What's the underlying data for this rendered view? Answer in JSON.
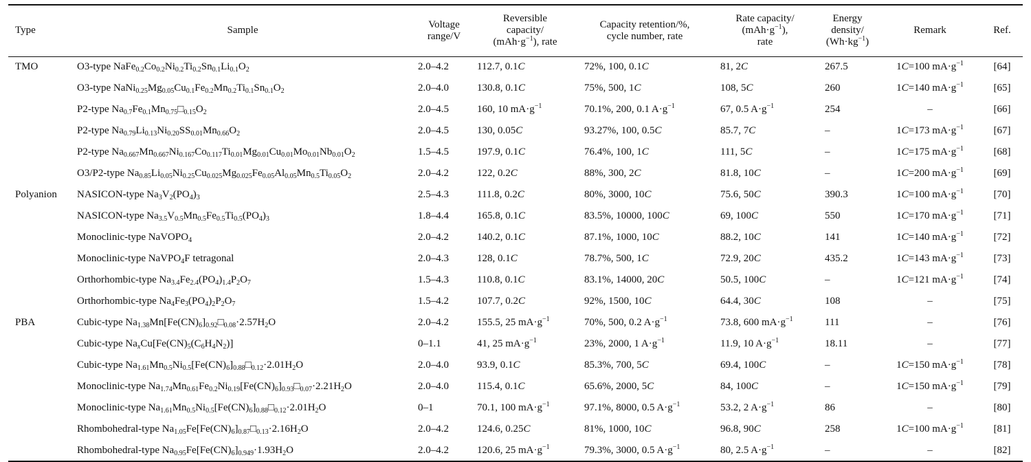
{
  "headers": {
    "type": "Type",
    "sample": "Sample",
    "voltage_1": "Voltage",
    "voltage_2": "range/V",
    "rev_1": "Reversible",
    "rev_2": "capacity/",
    "rev_3_pre": "(mAh·g",
    "rev_3_sup": "−1",
    "rev_3_post": "), rate",
    "ret_1": "Capacity retention/%,",
    "ret_2": "cycle number, rate",
    "rate_1": "Rate capacity/",
    "rate_2_pre": "(mAh·g",
    "rate_2_sup": "−1",
    "rate_2_post": "),",
    "rate_3": "rate",
    "energy_1": "Energy",
    "energy_2": "density/",
    "energy_3_pre": "(Wh·kg",
    "energy_3_sup": "−1",
    "energy_3_post": ")",
    "remark": "Remark",
    "ref": "Ref."
  },
  "rows": [
    {
      "type": "TMO",
      "sample": "O3-type NaFe<sub>0.2</sub>Co<sub>0.2</sub>Ni<sub>0.2</sub>Ti<sub>0.2</sub>Sn<sub>0.1</sub>Li<sub>0.1</sub>O<sub>2</sub>",
      "voltage": "2.0–4.2",
      "capacity": "112.7, 0.1<i>C</i>",
      "retention": "72%, 100, 0.1<i>C</i>",
      "rate": "81, 2<i>C</i>",
      "energy": "267.5",
      "remark": "1<i>C</i>=100 mA·g<sup>−1</sup>",
      "ref": "[64]"
    },
    {
      "type": "",
      "sample": "O3-type NaNi<sub>0.25</sub>Mg<sub>0.05</sub>Cu<sub>0.1</sub>Fe<sub>0.2</sub>Mn<sub>0.2</sub>Ti<sub>0.1</sub>Sn<sub>0.1</sub>O<sub>2</sub>",
      "voltage": "2.0–4.0",
      "capacity": "130.8, 0.1<i>C</i>",
      "retention": "75%, 500, 1<i>C</i>",
      "rate": "108, 5<i>C</i>",
      "energy": "260",
      "remark": "1<i>C</i>=140 mA·g<sup>−1</sup>",
      "ref": "[65]"
    },
    {
      "type": "",
      "sample": "P2-type Na<sub>0.7</sub>Fe<sub>0.1</sub>Mn<sub>0.75</sub>□<sub>0.15</sub>O<sub>2</sub>",
      "voltage": "2.0–4.5",
      "capacity": "160, 10 mA·g<sup>−1</sup>",
      "retention": "70.1%, 200, 0.1 A·g<sup>−1</sup>",
      "rate": "67, 0.5 A·g<sup>−1</sup>",
      "energy": "254",
      "remark": "–",
      "ref": "[66]"
    },
    {
      "type": "",
      "sample": "P2-type Na<sub>0.79</sub>Li<sub>0.13</sub>Ni<sub>0.20</sub>SS<sub>0.01</sub>Mn<sub>0.66</sub>O<sub>2</sub>",
      "voltage": "2.0–4.5",
      "capacity": "130, 0.05<i>C</i>",
      "retention": "93.27%, 100, 0.5<i>C</i>",
      "rate": "85.7, 7<i>C</i>",
      "energy": "–",
      "remark": "1<i>C</i>=173 mA·g<sup>−1</sup>",
      "ref": "[67]"
    },
    {
      "type": "",
      "sample": "P2-type Na<sub>0.667</sub>Mn<sub>0.667</sub>Ni<sub>0.167</sub>Co<sub>0.117</sub>Ti<sub>0.01</sub>Mg<sub>0.01</sub>Cu<sub>0.01</sub>Mo<sub>0.01</sub>Nb<sub>0.01</sub>O<sub>2</sub>",
      "voltage": "1.5–4.5",
      "capacity": "197.9, 0.1<i>C</i>",
      "retention": "76.4%, 100, 1<i>C</i>",
      "rate": "111, 5<i>C</i>",
      "energy": "–",
      "remark": "1<i>C</i>=175 mA·g<sup>−1</sup>",
      "ref": "[68]"
    },
    {
      "type": "",
      "sample": "O3/P2-type Na<sub>0.85</sub>Li<sub>0.05</sub>Ni<sub>0.25</sub>Cu<sub>0.025</sub>Mg<sub>0.025</sub>Fe<sub>0.05</sub>Al<sub>0.05</sub>Mn<sub>0.5</sub>Ti<sub>0.05</sub>O<sub>2</sub>",
      "voltage": "2.0–4.2",
      "capacity": "122, 0.2<i>C</i>",
      "retention": "88%, 300, 2<i>C</i>",
      "rate": "81.8, 10<i>C</i>",
      "energy": "–",
      "remark": "1<i>C</i>=200 mA·g<sup>−1</sup>",
      "ref": "[69]"
    },
    {
      "type": "Polyanion",
      "sample": "NASICON-type Na<sub>3</sub>V<sub>2</sub>(PO<sub>4</sub>)<sub>3</sub>",
      "voltage": "2.5–4.3",
      "capacity": "111.8, 0.2<i>C</i>",
      "retention": "80%, 3000, 10<i>C</i>",
      "rate": "75.6, 50<i>C</i>",
      "energy": "390.3",
      "remark": "1<i>C</i>=100 mA·g<sup>−1</sup>",
      "ref": "[70]"
    },
    {
      "type": "",
      "sample": "NASICON-type Na<sub>3.5</sub>V<sub>0.5</sub>Mn<sub>0.5</sub>Fe<sub>0.5</sub>Ti<sub>0.5</sub>(PO<sub>4</sub>)<sub>3</sub>",
      "voltage": "1.8–4.4",
      "capacity": "165.8, 0.1<i>C</i>",
      "retention": "83.5%, 10000, 100<i>C</i>",
      "rate": "69, 100<i>C</i>",
      "energy": "550",
      "remark": "1<i>C</i>=170 mA·g<sup>−1</sup>",
      "ref": "[71]"
    },
    {
      "type": "",
      "sample": "Monoclinic-type NaVOPO<sub>4</sub>",
      "voltage": "2.0–4.2",
      "capacity": "140.2, 0.1<i>C</i>",
      "retention": "87.1%, 1000, 10<i>C</i>",
      "rate": "88.2, 10<i>C</i>",
      "energy": "141",
      "remark": "1<i>C</i>=140 mA·g<sup>−1</sup>",
      "ref": "[72]"
    },
    {
      "type": "",
      "sample": "Monoclinic-type NaVPO<sub>4</sub>F tetragonal",
      "voltage": "2.0–4.3",
      "capacity": "128, 0.1<i>C</i>",
      "retention": "78.7%, 500, 1<i>C</i>",
      "rate": "72.9, 20<i>C</i>",
      "energy": "435.2",
      "remark": "1<i>C</i>=143 mA·g<sup>−1</sup>",
      "ref": "[73]"
    },
    {
      "type": "",
      "sample": "Orthorhombic-type Na<sub>3.4</sub>Fe<sub>2.4</sub>(PO<sub>4</sub>)<sub>1.4</sub>P<sub>2</sub>O<sub>7</sub>",
      "voltage": "1.5–4.3",
      "capacity": "110.8, 0.1<i>C</i>",
      "retention": "83.1%, 14000, 20<i>C</i>",
      "rate": "50.5, 100<i>C</i>",
      "energy": "–",
      "remark": "1<i>C</i>=121 mA·g<sup>−1</sup>",
      "ref": "[74]"
    },
    {
      "type": "",
      "sample": "Orthorhombic-type Na<sub>4</sub>Fe<sub>3</sub>(PO<sub>4</sub>)<sub>2</sub>P<sub>2</sub>O<sub>7</sub>",
      "voltage": "1.5–4.2",
      "capacity": "107.7, 0.2<i>C</i>",
      "retention": "92%, 1500, 10<i>C</i>",
      "rate": "64.4, 30<i>C</i>",
      "energy": "108",
      "remark": "–",
      "ref": "[75]"
    },
    {
      "type": "PBA",
      "sample": "Cubic-type Na<sub>1.38</sub>Mn[Fe(CN)<sub>6</sub>]<sub>0.92</sub>□<sub>0.08</sub>·2.57H<sub>2</sub>O",
      "voltage": "2.0–4.2",
      "capacity": "155.5, 25 mA·g<sup>−1</sup>",
      "retention": "70%, 500, 0.2 A·g<sup>−1</sup>",
      "rate": "73.8, 600 mA·g<sup>−1</sup>",
      "energy": "111",
      "remark": "–",
      "ref": "[76]"
    },
    {
      "type": "",
      "sample": "Cubic-type Na<sub><i>x</i></sub>Cu[Fe(CN)<sub>5</sub>(C<sub>6</sub>H<sub>4</sub>N<sub>2</sub>)]",
      "voltage": "0–1.1",
      "capacity": "41, 25 mA·g<sup>−1</sup>",
      "retention": "23%, 2000, 1 A·g<sup>−1</sup>",
      "rate": "11.9, 10 A·g<sup>−1</sup>",
      "energy": "18.11",
      "remark": "–",
      "ref": "[77]"
    },
    {
      "type": "",
      "sample": "Cubic-type Na<sub>1.61</sub>Mn<sub>0.5</sub>Ni<sub>0.5</sub>[Fe(CN)<sub>6</sub>]<sub>0.88</sub>□<sub>0.12</sub>·2.01H<sub>2</sub>O",
      "voltage": "2.0–4.0",
      "capacity": "93.9, 0.1<i>C</i>",
      "retention": "85.3%, 700, 5<i>C</i>",
      "rate": "69.4, 100<i>C</i>",
      "energy": "–",
      "remark": "1<i>C</i>=150 mA·g<sup>−1</sup>",
      "ref": "[78]"
    },
    {
      "type": "",
      "sample": "Monoclinic-type Na<sub>1.74</sub>Mn<sub>0.61</sub>Fe<sub>0.2</sub>Ni<sub>0.19</sub>[Fe(CN)<sub>6</sub>]<sub>0.93</sub>□<sub>0.07</sub>·2.21H<sub>2</sub>O",
      "voltage": "2.0–4.0",
      "capacity": "115.4, 0.1<i>C</i>",
      "retention": "65.6%, 2000, 5<i>C</i>",
      "rate": "84, 100<i>C</i>",
      "energy": "–",
      "remark": "1<i>C</i>=150 mA·g<sup>−1</sup>",
      "ref": "[79]"
    },
    {
      "type": "",
      "sample": "Monoclinic-type Na<sub>1.61</sub>Mn<sub>0.5</sub>Ni<sub>0.5</sub>[Fe(CN)<sub>6</sub>]<sub>0.88</sub>□<sub>0.12</sub>·2.01H<sub>2</sub>O",
      "voltage": "0–1",
      "capacity": "70.1, 100 mA·g<sup>−1</sup>",
      "retention": "97.1%, 8000, 0.5 A·g<sup>−1</sup>",
      "rate": "53.2, 2 A·g<sup>−1</sup>",
      "energy": "86",
      "remark": "–",
      "ref": "[80]"
    },
    {
      "type": "",
      "sample": "Rhombohedral-type Na<sub>1.05</sub>Fe[Fe(CN)<sub>6</sub>]<sub>0.87</sub>□<sub>0.13</sub>·2.16H<sub>2</sub>O",
      "voltage": "2.0–4.2",
      "capacity": "124.6, 0.25<i>C</i>",
      "retention": "81%, 1000, 10<i>C</i>",
      "rate": "96.8, 90<i>C</i>",
      "energy": "258",
      "remark": "1<i>C</i>=100 mA·g<sup>−1</sup>",
      "ref": "[81]"
    },
    {
      "type": "",
      "sample": "Rhombohedral-type Na<sub>0.95</sub>Fe[Fe(CN)<sub>6</sub>]<sub>0.949</sub>·1.93H<sub>2</sub>O",
      "voltage": "2.0–4.2",
      "capacity": "120.6, 25 mA·g<sup>−1</sup>",
      "retention": "79.3%, 3000, 0.5 A·g<sup>−1</sup>",
      "rate": "80, 2.5 A·g<sup>−1</sup>",
      "energy": "–",
      "remark": "–",
      "ref": "[82]"
    }
  ]
}
